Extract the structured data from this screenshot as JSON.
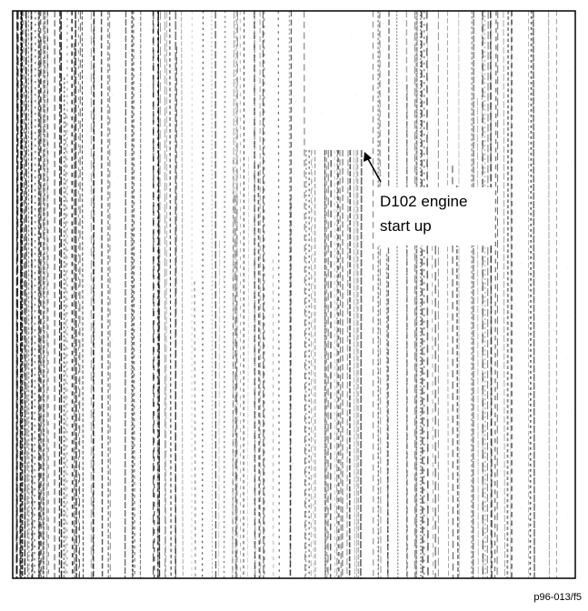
{
  "annotation": {
    "lines": [
      "D102 engine",
      "start up"
    ]
  },
  "figure_id": "p96-013/f5"
}
